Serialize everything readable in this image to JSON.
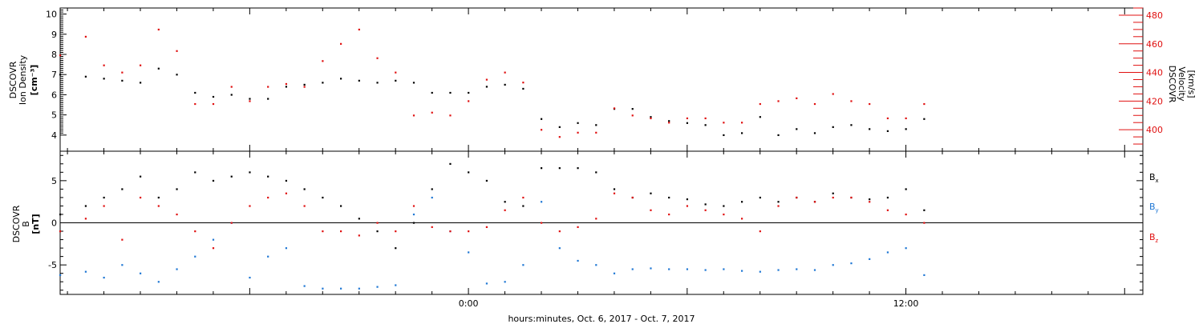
{
  "colors": {
    "black": "#000000",
    "blue": "#1f77d4",
    "red": "#e01010"
  },
  "xlabel": "hours:minutes, Oct.  6, 2017 - Oct.  7, 2017",
  "time_ticks": [
    "0:00",
    "12:00"
  ],
  "chart_data": [
    {
      "type": "scatter",
      "panel": "top",
      "ylabel": [
        "DSCOVR",
        "Ion Density",
        "[cm⁻³]"
      ],
      "ylabel2": [
        "DSCOVR",
        "Velocity",
        "[km/s]"
      ],
      "xlim": [
        -11.2,
        18.5
      ],
      "ylim": [
        3.2,
        10.3
      ],
      "y2lim": [
        385,
        485
      ],
      "yticks": [
        4,
        5,
        6,
        7,
        8,
        9,
        10
      ],
      "y2ticks": [
        400,
        420,
        440,
        460,
        480
      ],
      "series": [
        {
          "name": "Ion Density",
          "color": "black",
          "axis": "left",
          "x": [
            -11.2,
            -10.5,
            -10,
            -9.5,
            -9,
            -8.5,
            -8,
            -7.5,
            -7,
            -6.5,
            -6,
            -5.5,
            -5,
            -4.5,
            -4,
            -3.5,
            -3,
            -2.5,
            -2,
            -1.5,
            -1,
            -0.5,
            0,
            0.5,
            1,
            1.5,
            2,
            2.5,
            3,
            3.5,
            4,
            4.5,
            5,
            5.5,
            6,
            6.5,
            7,
            7.5,
            8,
            8.5,
            9,
            9.5,
            10,
            10.5,
            11,
            11.5,
            12,
            12.5
          ],
          "y": [
            7.0,
            6.9,
            6.8,
            6.7,
            6.6,
            7.3,
            7.0,
            6.1,
            5.9,
            6.0,
            5.8,
            5.8,
            6.4,
            6.5,
            6.6,
            6.8,
            6.7,
            6.6,
            6.7,
            6.6,
            6.1,
            6.1,
            6.1,
            6.4,
            6.5,
            6.3,
            4.8,
            4.4,
            4.6,
            4.5,
            5.3,
            5.3,
            4.9,
            4.7,
            4.6,
            4.5,
            4.0,
            4.1,
            4.9,
            4.0,
            4.3,
            4.1,
            4.4,
            4.5,
            4.3,
            4.2,
            4.3,
            4.8
          ]
        },
        {
          "name": "Velocity",
          "color": "red",
          "axis": "right",
          "x": [
            -11.2,
            -10.5,
            -10,
            -9.5,
            -9,
            -8.5,
            -8,
            -7.5,
            -7,
            -6.5,
            -6,
            -5.5,
            -5,
            -4.5,
            -4,
            -3.5,
            -3,
            -2.5,
            -2,
            -1.5,
            -1,
            -0.5,
            0,
            0.5,
            1,
            1.5,
            2,
            2.5,
            3,
            3.5,
            4,
            4.5,
            5,
            5.5,
            6,
            6.5,
            7,
            7.5,
            8,
            8.5,
            9,
            9.5,
            10,
            10.5,
            11,
            11.5,
            12,
            12.5
          ],
          "y": [
            452,
            465,
            445,
            440,
            445,
            470,
            455,
            418,
            418,
            430,
            420,
            430,
            432,
            430,
            448,
            460,
            470,
            450,
            440,
            410,
            412,
            410,
            420,
            435,
            440,
            433,
            400,
            395,
            398,
            398,
            415,
            410,
            408,
            405,
            408,
            408,
            405,
            405,
            418,
            420,
            422,
            418,
            425,
            420,
            418,
            408,
            408,
            418
          ]
        }
      ]
    },
    {
      "type": "scatter",
      "panel": "bottom",
      "ylabel": [
        "DSCOVR",
        "B",
        "[nT]"
      ],
      "xlim": [
        -11.2,
        18.5
      ],
      "ylim": [
        -8.5,
        8.5
      ],
      "yticks": [
        -5,
        0,
        5
      ],
      "legend": [
        "Bx",
        "By",
        "Bz"
      ],
      "series": [
        {
          "name": "Bx",
          "color": "black",
          "x": [
            -11.2,
            -10.5,
            -10,
            -9.5,
            -9,
            -8.5,
            -8,
            -7.5,
            -7,
            -6.5,
            -6,
            -5.5,
            -5,
            -4.5,
            -4,
            -3.5,
            -3,
            -2.5,
            -2,
            -1.5,
            -1,
            -0.5,
            0,
            0.5,
            1,
            1.5,
            2,
            2.5,
            3,
            3.5,
            4,
            4.5,
            5,
            5.5,
            6,
            6.5,
            7,
            7.5,
            8,
            8.5,
            9,
            9.5,
            10,
            10.5,
            11,
            11.5,
            12,
            12.5
          ],
          "y": [
            1,
            2,
            3,
            4,
            5.5,
            3,
            4,
            6,
            5,
            5.5,
            6,
            5.5,
            5,
            4,
            3,
            2,
            0.5,
            -1,
            -3,
            0,
            4,
            7,
            6,
            5,
            2.5,
            2,
            6.5,
            6.5,
            6.5,
            6,
            4,
            3,
            3.5,
            3,
            2.8,
            2.2,
            2,
            2.5,
            3,
            2.5,
            3,
            2.5,
            3.5,
            3,
            2.8,
            3,
            4,
            1.5
          ]
        },
        {
          "name": "By",
          "color": "blue",
          "x": [
            -11.2,
            -10.5,
            -10,
            -9.5,
            -9,
            -8.5,
            -8,
            -7.5,
            -7,
            -6.5,
            -6,
            -5.5,
            -5,
            -4.5,
            -4,
            -3.5,
            -3,
            -2.5,
            -2,
            -1.5,
            -1,
            -0.5,
            0,
            0.5,
            1,
            1.5,
            2,
            2.5,
            3,
            3.5,
            4,
            4.5,
            5,
            5.5,
            6,
            6.5,
            7,
            7.5,
            8,
            8.5,
            9,
            9.5,
            10,
            10.5,
            11,
            11.5,
            12,
            12.5
          ],
          "y": [
            -6.2,
            -5.8,
            -6.5,
            -5,
            -6,
            -7,
            -5.5,
            -4,
            -2,
            0,
            -6.5,
            -4,
            -3,
            -7.5,
            -7.8,
            -7.8,
            -7.8,
            -7.6,
            -7.4,
            1,
            3,
            -1,
            -3.5,
            -7.2,
            -7,
            -5,
            2.5,
            -3,
            -4.5,
            -5,
            -6,
            -5.5,
            -5.4,
            -5.5,
            -5.5,
            -5.6,
            -5.5,
            -5.7,
            -5.8,
            -5.6,
            -5.5,
            -5.6,
            -5,
            -4.8,
            -4.3,
            -3.5,
            -3,
            -6.2
          ]
        },
        {
          "name": "Bz",
          "color": "red",
          "x": [
            -11.2,
            -10.5,
            -10,
            -9.5,
            -9,
            -8.5,
            -8,
            -7.5,
            -7,
            -6.5,
            -6,
            -5.5,
            -5,
            -4.5,
            -4,
            -3.5,
            -3,
            -2.5,
            -2,
            -1.5,
            -1,
            -0.5,
            0,
            0.5,
            1,
            1.5,
            2,
            2.5,
            3,
            3.5,
            4,
            4.5,
            5,
            5.5,
            6,
            6.5,
            7,
            7.5,
            8,
            8.5,
            9,
            9.5,
            10,
            10.5,
            11,
            11.5,
            12,
            12.5
          ],
          "y": [
            -1,
            0.5,
            2,
            -2,
            3,
            2,
            1,
            -1,
            -3,
            0,
            2,
            3,
            3.5,
            2,
            -1,
            -1,
            -1.5,
            0,
            -1,
            2,
            -0.5,
            -1,
            -1,
            -0.5,
            1.5,
            3,
            0,
            -1,
            -0.5,
            0.5,
            3.5,
            3,
            1.5,
            1,
            2,
            1.5,
            1,
            0.5,
            -1,
            2,
            3,
            2.5,
            3,
            3,
            2.5,
            1.5,
            1,
            0
          ]
        }
      ]
    }
  ]
}
